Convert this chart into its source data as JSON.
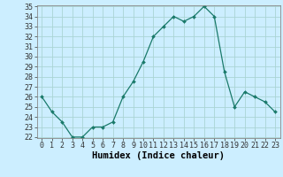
{
  "x": [
    0,
    1,
    2,
    3,
    4,
    5,
    6,
    7,
    8,
    9,
    10,
    11,
    12,
    13,
    14,
    15,
    16,
    17,
    18,
    19,
    20,
    21,
    22,
    23
  ],
  "y": [
    26,
    24.5,
    23.5,
    22,
    22,
    23,
    23,
    23.5,
    26,
    27.5,
    29.5,
    32,
    33,
    34,
    33.5,
    34,
    35,
    34,
    28.5,
    25,
    26.5,
    26,
    25.5,
    24.5
  ],
  "xlabel": "Humidex (Indice chaleur)",
  "ylabel": "",
  "ylim": [
    22,
    35
  ],
  "xlim": [
    -0.5,
    23.5
  ],
  "yticks": [
    22,
    23,
    24,
    25,
    26,
    27,
    28,
    29,
    30,
    31,
    32,
    33,
    34,
    35
  ],
  "xticks": [
    0,
    1,
    2,
    3,
    4,
    5,
    6,
    7,
    8,
    9,
    10,
    11,
    12,
    13,
    14,
    15,
    16,
    17,
    18,
    19,
    20,
    21,
    22,
    23
  ],
  "line_color": "#1a7a6a",
  "marker_color": "#1a7a6a",
  "bg_color": "#cceeff",
  "grid_color": "#aad4d4",
  "xlabel_fontsize": 7.5,
  "tick_fontsize": 6
}
